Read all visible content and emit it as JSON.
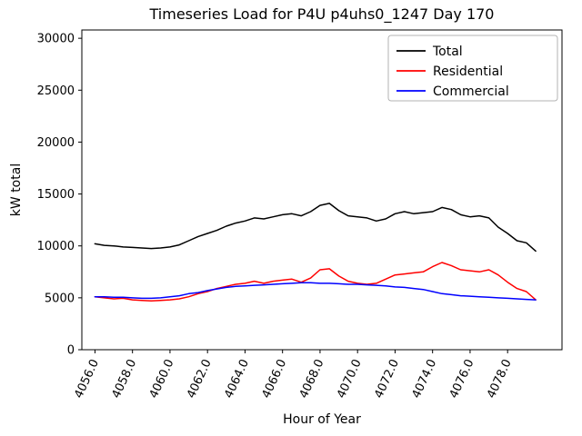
{
  "figure": {
    "title": "Timeseries Load for P4U p4uhs0_1247  Day 170",
    "xlabel": "Hour of Year",
    "ylabel": "kW total"
  },
  "chart_data": {
    "type": "line",
    "title": "Timeseries Load for P4U p4uhs0_1247  Day 170",
    "xlabel": "Hour of Year",
    "ylabel": "kW total",
    "grid": false,
    "xlim": [
      4055.3,
      4080.9
    ],
    "ylim": [
      0,
      30800
    ],
    "xticks": {
      "values": [
        4056,
        4058,
        4060,
        4062,
        4064,
        4066,
        4068,
        4070,
        4072,
        4074,
        4076,
        4078
      ],
      "labels": [
        "4056.0",
        "4058.0",
        "4060.0",
        "4062.0",
        "4064.0",
        "4066.0",
        "4068.0",
        "4070.0",
        "4072.0",
        "4074.0",
        "4076.0",
        "4078.0"
      ]
    },
    "yticks": {
      "values": [
        0,
        5000,
        10000,
        15000,
        20000,
        25000,
        30000
      ],
      "labels": [
        "0",
        "5000",
        "10000",
        "15000",
        "20000",
        "25000",
        "30000"
      ]
    },
    "legend": {
      "position": "upper right",
      "entries": [
        {
          "label": "Total",
          "color": "#000000"
        },
        {
          "label": "Residential",
          "color": "#ff0000"
        },
        {
          "label": "Commercial",
          "color": "#0000ff"
        }
      ]
    },
    "x": [
      4056.0,
      4056.5,
      4057.0,
      4057.5,
      4058.0,
      4058.5,
      4059.0,
      4059.5,
      4060.0,
      4060.5,
      4061.0,
      4061.5,
      4062.0,
      4062.5,
      4063.0,
      4063.5,
      4064.0,
      4064.5,
      4065.0,
      4065.5,
      4066.0,
      4066.5,
      4067.0,
      4067.5,
      4068.0,
      4068.5,
      4069.0,
      4069.5,
      4070.0,
      4070.5,
      4071.0,
      4071.5,
      4072.0,
      4072.5,
      4073.0,
      4073.5,
      4074.0,
      4074.5,
      4075.0,
      4075.5,
      4076.0,
      4076.5,
      4077.0,
      4077.5,
      4078.0,
      4078.5,
      4079.0,
      4079.5
    ],
    "series": [
      {
        "name": "Total",
        "color": "#000000",
        "values": [
          10200,
          10050,
          10000,
          9900,
          9850,
          9800,
          9750,
          9800,
          9900,
          10100,
          10500,
          10900,
          11200,
          11500,
          11900,
          12200,
          12400,
          12700,
          12600,
          12800,
          13000,
          13100,
          12900,
          13300,
          13900,
          14100,
          13400,
          12900,
          12800,
          12700,
          12400,
          12600,
          13100,
          13300,
          13100,
          13200,
          13300,
          13700,
          13500,
          13000,
          12800,
          12900,
          12700,
          11800,
          11200,
          10500,
          10300,
          9500
        ]
      },
      {
        "name": "Residential",
        "color": "#ff0000",
        "values": [
          5100,
          5000,
          4900,
          4950,
          4800,
          4750,
          4700,
          4750,
          4800,
          4900,
          5100,
          5400,
          5600,
          5900,
          6100,
          6300,
          6400,
          6600,
          6400,
          6600,
          6700,
          6800,
          6500,
          6900,
          7700,
          7800,
          7100,
          6600,
          6400,
          6300,
          6400,
          6800,
          7200,
          7300,
          7400,
          7500,
          8000,
          8400,
          8100,
          7700,
          7600,
          7500,
          7700,
          7200,
          6500,
          5900,
          5600,
          4800
        ]
      },
      {
        "name": "Commercial",
        "color": "#0000ff",
        "values": [
          5100,
          5100,
          5050,
          5050,
          5000,
          4950,
          4950,
          5000,
          5100,
          5200,
          5400,
          5500,
          5700,
          5850,
          6000,
          6100,
          6150,
          6200,
          6250,
          6300,
          6350,
          6400,
          6450,
          6450,
          6400,
          6400,
          6350,
          6300,
          6300,
          6250,
          6200,
          6150,
          6050,
          6000,
          5900,
          5800,
          5600,
          5400,
          5300,
          5200,
          5150,
          5100,
          5050,
          5000,
          4950,
          4900,
          4850,
          4800
        ]
      }
    ]
  }
}
